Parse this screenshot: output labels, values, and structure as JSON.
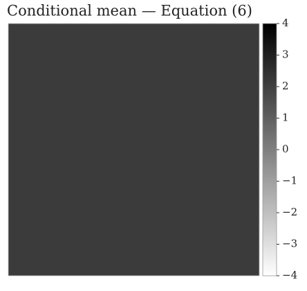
{
  "chart_data": {
    "type": "image",
    "title": "Conditional mean — Equation (6)",
    "colorbar": {
      "clim": [
        -4,
        4
      ],
      "cticks": [
        {
          "value": -4,
          "label": "−4"
        },
        {
          "value": -3,
          "label": "−3"
        },
        {
          "value": -2,
          "label": "−2"
        },
        {
          "value": -1,
          "label": "−1"
        },
        0,
        1,
        2,
        3,
        4
      ],
      "colors": [
        "#ffffff",
        "#000000"
      ]
    }
  }
}
